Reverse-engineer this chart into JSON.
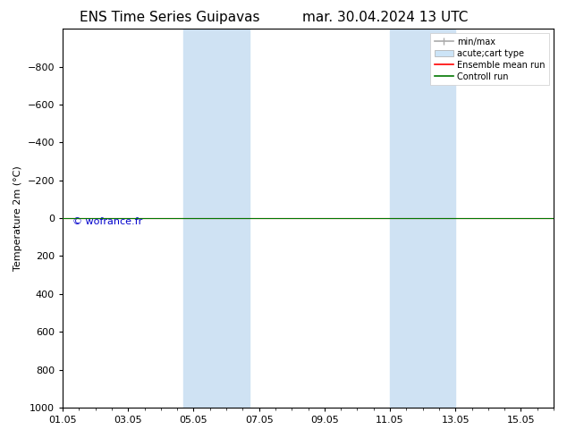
{
  "title": "ENS Time Series Guipavas",
  "title_date": "mar. 30.04.2024 13 UTC",
  "ylabel": "Temperature 2m (°C)",
  "xlim": [
    0,
    15
  ],
  "ylim": [
    1000,
    -1000
  ],
  "yticks": [
    -800,
    -600,
    -400,
    -200,
    0,
    200,
    400,
    600,
    800,
    1000
  ],
  "xtick_labels": [
    "01.05",
    "03.05",
    "05.05",
    "07.05",
    "09.05",
    "11.05",
    "13.05",
    "15.05"
  ],
  "xtick_positions": [
    0,
    2,
    4,
    6,
    8,
    10,
    12,
    14
  ],
  "shaded_bands": [
    {
      "x_start": 3.7,
      "x_end": 5.7
    },
    {
      "x_start": 10.0,
      "x_end": 12.0
    }
  ],
  "shaded_color": "#cfe2f3",
  "shaded_alpha": 1.0,
  "flat_line_color_red": "#ff0000",
  "flat_line_color_green": "#007700",
  "flat_line_y": 0,
  "watermark": "© wofrance.fr",
  "watermark_color": "#0000cc",
  "watermark_fontsize": 8,
  "background_color": "#ffffff",
  "title_fontsize": 11,
  "tick_fontsize": 8,
  "ylabel_fontsize": 8,
  "legend_gray": "#aaaaaa",
  "legend_blue": "#cce4f7"
}
